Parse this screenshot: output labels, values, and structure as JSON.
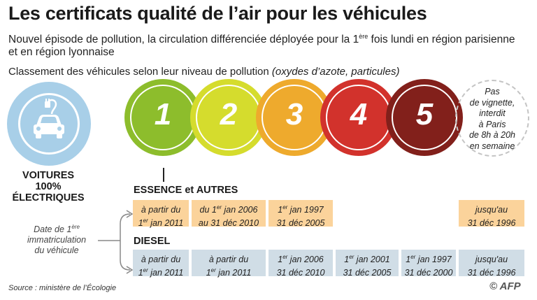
{
  "title": "Les certificats qualité de l’air pour les véhicules",
  "subtitle": {
    "part1": "Nouvel épisode de pollution, la circulation différenciée déployée pour la 1",
    "sup": "ère",
    "part2": " fois lundi en région parisienne et en région lyonnaise"
  },
  "classement": {
    "text": "Classement des véhicules selon leur niveau de pollution ",
    "italic": "(oxydes d’azote, particules)"
  },
  "electric": {
    "icon": "electric-car-icon",
    "line1": "VOITURES",
    "line2": "100%",
    "line3": "ÉLECTRIQUES"
  },
  "circles": [
    {
      "number": "1",
      "color": "#8dbd2c"
    },
    {
      "number": "2",
      "color": "#d5dc2d"
    },
    {
      "number": "3",
      "color": "#eeaa2d"
    },
    {
      "number": "4",
      "color": "#d2322c"
    },
    {
      "number": "5",
      "color": "#82201b"
    }
  ],
  "no_vignette": [
    "Pas",
    "de vignette,",
    "interdit",
    "à Paris",
    "de 8h à 20h",
    "en semaine"
  ],
  "essence": {
    "label": "ESSENCE et AUTRES",
    "cells": [
      {
        "l1a": "à partir du",
        "l1sup": "",
        "l1b": "",
        "l2a": "1",
        "l2sup": "er",
        "l2b": " jan 2011"
      },
      {
        "l1a": "du 1",
        "l1sup": "er",
        "l1b": " jan 2006",
        "l2a": "au 31 déc 2010",
        "l2sup": "",
        "l2b": ""
      },
      {
        "l1a": "1",
        "l1sup": "er",
        "l1b": "  jan 1997",
        "l2a": "31 déc 2005",
        "l2sup": "",
        "l2b": ""
      },
      {
        "l1a": "jusqu'au",
        "l1sup": "",
        "l1b": "",
        "l2a": "31 déc 1996",
        "l2sup": "",
        "l2b": ""
      }
    ]
  },
  "diesel": {
    "label": "DIESEL",
    "cells": [
      {
        "l1a": "à partir du",
        "l1sup": "",
        "l1b": "",
        "l2a": "1",
        "l2sup": "er",
        "l2b": " jan 2011"
      },
      {
        "l1a": "à partir du",
        "l1sup": "",
        "l1b": "",
        "l2a": "1",
        "l2sup": "er",
        "l2b": " jan 2011"
      },
      {
        "l1a": "1",
        "l1sup": "er",
        "l1b": " jan 2006",
        "l2a": "31 déc 2010",
        "l2sup": "",
        "l2b": ""
      },
      {
        "l1a": "1",
        "l1sup": "er",
        "l1b": " jan 2001",
        "l2a": "31 déc 2005",
        "l2sup": "",
        "l2b": ""
      },
      {
        "l1a": "1",
        "l1sup": "er",
        "l1b": " jan 1997",
        "l2a": "31 déc 2000",
        "l2sup": "",
        "l2b": ""
      },
      {
        "l1a": "jusqu'au",
        "l1sup": "",
        "l1b": "",
        "l2a": "31 déc 1996",
        "l2sup": "",
        "l2b": ""
      }
    ]
  },
  "date_label": {
    "l1a": "Date de 1",
    "l1sup": "ère",
    "l2": "immatriculation",
    "l3": "du véhicule"
  },
  "source": "Source : ministère de l’Écologie",
  "credit": "© AFP"
}
